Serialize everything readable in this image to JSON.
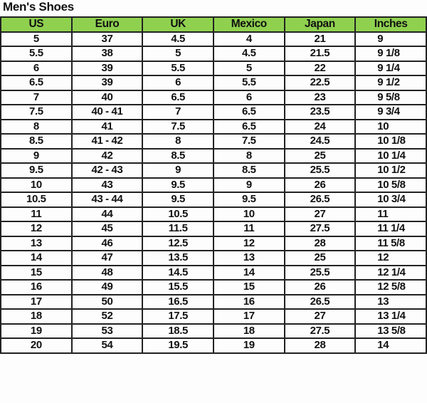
{
  "title": "Men's Shoes",
  "header_color": "#8fd14f",
  "columns": [
    "US",
    "Euro",
    "UK",
    "Mexico",
    "Japan",
    "Inches"
  ],
  "rows": [
    [
      "5",
      "37",
      "4.5",
      "4",
      "21",
      "9"
    ],
    [
      "5.5",
      "38",
      "5",
      "4.5",
      "21.5",
      "9 1/8"
    ],
    [
      "6",
      "39",
      "5.5",
      "5",
      "22",
      "9 1/4"
    ],
    [
      "6.5",
      "39",
      "6",
      "5.5",
      "22.5",
      "9 1/2"
    ],
    [
      "7",
      "40",
      "6.5",
      "6",
      "23",
      "9 5/8"
    ],
    [
      "7.5",
      "40 - 41",
      "7",
      "6.5",
      "23.5",
      "9 3/4"
    ],
    [
      "8",
      "41",
      "7.5",
      "6.5",
      "24",
      "10"
    ],
    [
      "8.5",
      "41 - 42",
      "8",
      "7.5",
      "24.5",
      "10 1/8"
    ],
    [
      "9",
      "42",
      "8.5",
      "8",
      "25",
      "10 1/4"
    ],
    [
      "9.5",
      "42 - 43",
      "9",
      "8.5",
      "25.5",
      "10 1/2"
    ],
    [
      "10",
      "43",
      "9.5",
      "9",
      "26",
      "10 5/8"
    ],
    [
      "10.5",
      "43 - 44",
      "9.5",
      "9.5",
      "26.5",
      "10 3/4"
    ],
    [
      "11",
      "44",
      "10.5",
      "10",
      "27",
      "11"
    ],
    [
      "12",
      "45",
      "11.5",
      "11",
      "27.5",
      "11 1/4"
    ],
    [
      "13",
      "46",
      "12.5",
      "12",
      "28",
      "11 5/8"
    ],
    [
      "14",
      "47",
      "13.5",
      "13",
      "25",
      "12"
    ],
    [
      "15",
      "48",
      "14.5",
      "14",
      "25.5",
      "12 1/4"
    ],
    [
      "16",
      "49",
      "15.5",
      "15",
      "26",
      "12 5/8"
    ],
    [
      "17",
      "50",
      "16.5",
      "16",
      "26.5",
      "13"
    ],
    [
      "18",
      "52",
      "17.5",
      "17",
      "27",
      "13 1/4"
    ],
    [
      "19",
      "53",
      "18.5",
      "18",
      "27.5",
      "13 5/8"
    ],
    [
      "20",
      "54",
      "19.5",
      "19",
      "28",
      "14"
    ]
  ]
}
